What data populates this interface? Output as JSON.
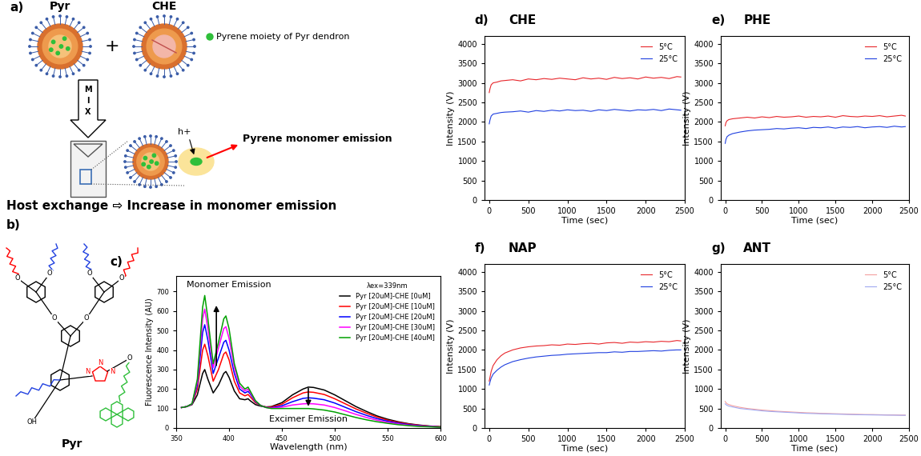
{
  "panel_a": {
    "label": "a)",
    "left_host": "Pyr",
    "right_host": "CHE",
    "plus": "+",
    "mix": "MIX",
    "key": "Pyrene moiety of Pyr dendron",
    "hole": "h+",
    "emission": "Pyrene monomer emission",
    "caption": "Host exchange ⇨ Increase in monomer emission"
  },
  "panel_b": {
    "label": "b)",
    "name": "Pyr",
    "atoms": [
      "O",
      "O",
      "O",
      "O",
      "O",
      "O",
      "OH",
      "N",
      "N",
      "N",
      "O"
    ]
  },
  "chart_data": [
    {
      "type": "line",
      "label": "c)",
      "xlabel": "Wavelength (nm)",
      "ylabel": "Fluorescence Intensity (AU)",
      "annotations": [
        "Monomer Emission",
        "Excimer Emission"
      ],
      "legend_title": "λex=339nm",
      "legend": "upper right",
      "xlim": [
        350,
        600
      ],
      "xticks": [
        350,
        400,
        450,
        500,
        550,
        600
      ],
      "ylim": [
        0,
        780
      ],
      "yticks": [
        0,
        100,
        200,
        300,
        400,
        500,
        600,
        700
      ],
      "x": [
        355,
        360,
        365,
        370,
        375,
        377,
        380,
        385,
        390,
        395,
        397,
        400,
        405,
        410,
        415,
        418,
        420,
        425,
        430,
        435,
        440,
        450,
        460,
        470,
        475,
        480,
        490,
        500,
        510,
        520,
        530,
        540,
        550,
        560,
        570,
        580,
        590,
        600
      ],
      "series": [
        {
          "name": "Pyr [20uM]-CHE [0uM]",
          "color": "#000000",
          "values": [
            105,
            110,
            120,
            170,
            280,
            300,
            250,
            180,
            220,
            280,
            290,
            260,
            190,
            150,
            145,
            150,
            140,
            120,
            112,
            108,
            110,
            130,
            170,
            200,
            210,
            208,
            195,
            170,
            140,
            110,
            85,
            62,
            45,
            32,
            22,
            15,
            10,
            7
          ]
        },
        {
          "name": "Pyr [20uM]-CHE [10uM]",
          "color": "#ff0000",
          "values": [
            105,
            110,
            122,
            200,
            400,
            430,
            370,
            240,
            300,
            380,
            390,
            350,
            240,
            180,
            165,
            172,
            160,
            130,
            115,
            108,
            108,
            122,
            155,
            180,
            185,
            183,
            172,
            150,
            124,
            98,
            76,
            56,
            40,
            29,
            20,
            14,
            9,
            6
          ]
        },
        {
          "name": "Pyr [20uM]-CHE [20uM]",
          "color": "#0000ff",
          "values": [
            105,
            110,
            123,
            220,
            490,
            530,
            450,
            280,
            360,
            440,
            450,
            400,
            280,
            200,
            180,
            188,
            175,
            135,
            115,
            106,
            104,
            114,
            135,
            152,
            155,
            153,
            145,
            128,
            106,
            84,
            65,
            48,
            35,
            25,
            17,
            12,
            8,
            5
          ]
        },
        {
          "name": "Pyr [20uM]-CHE [30uM]",
          "color": "#ff00ff",
          "values": [
            105,
            110,
            124,
            235,
            560,
            610,
            510,
            310,
            410,
            510,
            520,
            460,
            310,
            215,
            190,
            200,
            182,
            138,
            115,
            105,
            102,
            107,
            118,
            124,
            125,
            124,
            118,
            105,
            88,
            70,
            54,
            40,
            29,
            21,
            14,
            10,
            7,
            5
          ]
        },
        {
          "name": "Pyr [20uM]-CHE [40uM]",
          "color": "#00a000",
          "values": [
            105,
            110,
            125,
            250,
            620,
            680,
            560,
            330,
            440,
            560,
            575,
            510,
            330,
            230,
            200,
            210,
            190,
            140,
            115,
            105,
            100,
            100,
            100,
            100,
            100,
            98,
            92,
            82,
            68,
            54,
            42,
            32,
            24,
            17,
            12,
            8,
            6,
            4
          ]
        }
      ]
    },
    {
      "type": "line",
      "label": "d)",
      "title": "CHE",
      "xlabel": "Time (sec)",
      "ylabel": "Intensity (V)",
      "legend": "upper right",
      "xlim": [
        -60,
        2500
      ],
      "xticks": [
        0,
        500,
        1000,
        1500,
        2000,
        2500
      ],
      "ylim": [
        0,
        4200
      ],
      "yticks": [
        0,
        500,
        1000,
        1500,
        2000,
        2500,
        3000,
        3500,
        4000
      ],
      "x": [
        0,
        10,
        25,
        50,
        100,
        150,
        200,
        300,
        400,
        500,
        600,
        700,
        800,
        900,
        1000,
        1100,
        1200,
        1300,
        1400,
        1500,
        1600,
        1700,
        1800,
        1900,
        2000,
        2100,
        2200,
        2300,
        2400,
        2450
      ],
      "series": [
        {
          "name": "5°C",
          "color": "#e8262b",
          "values": [
            2750,
            2850,
            2950,
            3000,
            3020,
            3050,
            3060,
            3080,
            3050,
            3100,
            3080,
            3110,
            3090,
            3120,
            3100,
            3080,
            3130,
            3100,
            3120,
            3090,
            3140,
            3110,
            3130,
            3100,
            3150,
            3120,
            3140,
            3110,
            3160,
            3150
          ]
        },
        {
          "name": "25°C",
          "color": "#2040e0",
          "values": [
            1950,
            2050,
            2150,
            2200,
            2220,
            2240,
            2250,
            2260,
            2280,
            2250,
            2290,
            2270,
            2300,
            2280,
            2310,
            2290,
            2300,
            2270,
            2310,
            2290,
            2320,
            2300,
            2280,
            2310,
            2300,
            2320,
            2290,
            2330,
            2310,
            2300
          ]
        }
      ]
    },
    {
      "type": "line",
      "label": "e)",
      "title": "PHE",
      "xlabel": "Time (sec)",
      "ylabel": "Intensity (V)",
      "legend": "upper right",
      "xlim": [
        -60,
        2500
      ],
      "xticks": [
        0,
        500,
        1000,
        1500,
        2000,
        2500
      ],
      "ylim": [
        0,
        4200
      ],
      "yticks": [
        0,
        500,
        1000,
        1500,
        2000,
        2500,
        3000,
        3500,
        4000
      ],
      "x": [
        0,
        10,
        25,
        50,
        100,
        150,
        200,
        300,
        400,
        500,
        600,
        700,
        800,
        900,
        1000,
        1100,
        1200,
        1300,
        1400,
        1500,
        1600,
        1700,
        1800,
        1900,
        2000,
        2100,
        2200,
        2300,
        2400,
        2450
      ],
      "series": [
        {
          "name": "5°C",
          "color": "#e8262b",
          "values": [
            1900,
            1980,
            2030,
            2060,
            2080,
            2090,
            2100,
            2120,
            2100,
            2130,
            2110,
            2140,
            2120,
            2130,
            2150,
            2120,
            2140,
            2130,
            2150,
            2120,
            2160,
            2140,
            2130,
            2150,
            2140,
            2160,
            2130,
            2150,
            2170,
            2150
          ]
        },
        {
          "name": "25°C",
          "color": "#2040e0",
          "values": [
            1450,
            1550,
            1620,
            1660,
            1700,
            1720,
            1740,
            1770,
            1790,
            1800,
            1810,
            1830,
            1820,
            1840,
            1850,
            1830,
            1860,
            1850,
            1870,
            1840,
            1870,
            1860,
            1880,
            1850,
            1870,
            1880,
            1860,
            1890,
            1870,
            1880
          ]
        }
      ]
    },
    {
      "type": "line",
      "label": "f)",
      "title": "NAP",
      "xlabel": "Time (sec)",
      "ylabel": "Intensity (V)",
      "legend": "upper right",
      "xlim": [
        -60,
        2500
      ],
      "xticks": [
        0,
        500,
        1000,
        1500,
        2000,
        2500
      ],
      "ylim": [
        0,
        4200
      ],
      "yticks": [
        0,
        500,
        1000,
        1500,
        2000,
        2500,
        3000,
        3500,
        4000
      ],
      "x": [
        0,
        10,
        25,
        50,
        100,
        150,
        200,
        300,
        400,
        500,
        600,
        700,
        800,
        900,
        1000,
        1100,
        1200,
        1300,
        1400,
        1500,
        1600,
        1700,
        1800,
        1900,
        2000,
        2100,
        2200,
        2300,
        2400,
        2450
      ],
      "series": [
        {
          "name": "5°C",
          "color": "#e8262b",
          "values": [
            1200,
            1300,
            1450,
            1600,
            1750,
            1850,
            1920,
            2000,
            2050,
            2080,
            2100,
            2110,
            2130,
            2120,
            2150,
            2140,
            2160,
            2170,
            2150,
            2180,
            2190,
            2170,
            2200,
            2190,
            2210,
            2200,
            2220,
            2210,
            2240,
            2230
          ]
        },
        {
          "name": "25°C",
          "color": "#2040e0",
          "values": [
            1100,
            1180,
            1280,
            1380,
            1480,
            1560,
            1620,
            1700,
            1750,
            1790,
            1820,
            1840,
            1860,
            1870,
            1890,
            1900,
            1910,
            1920,
            1930,
            1930,
            1950,
            1940,
            1960,
            1960,
            1970,
            1980,
            1970,
            1990,
            2000,
            2000
          ]
        }
      ]
    },
    {
      "type": "line",
      "label": "g)",
      "title": "ANT",
      "xlabel": "Time (sec)",
      "ylabel": "Intensity (V)",
      "legend": "upper right",
      "xlim": [
        -60,
        2500
      ],
      "xticks": [
        0,
        500,
        1000,
        1500,
        2000,
        2500
      ],
      "ylim": [
        0,
        4200
      ],
      "yticks": [
        0,
        500,
        1000,
        1500,
        2000,
        2500,
        3000,
        3500,
        4000
      ],
      "x": [
        0,
        10,
        25,
        50,
        100,
        150,
        200,
        300,
        400,
        500,
        600,
        700,
        800,
        900,
        1000,
        1100,
        1200,
        1300,
        1400,
        1500,
        1600,
        1700,
        1800,
        1900,
        2000,
        2100,
        2200,
        2300,
        2400,
        2450
      ],
      "series": [
        {
          "name": "5°C",
          "color": "#f4a0a0",
          "values": [
            680,
            650,
            620,
            600,
            570,
            550,
            530,
            500,
            480,
            460,
            445,
            430,
            420,
            410,
            400,
            390,
            385,
            375,
            370,
            365,
            360,
            355,
            350,
            345,
            345,
            340,
            335,
            335,
            330,
            330
          ]
        },
        {
          "name": "25°C",
          "color": "#a0a8f0",
          "values": [
            620,
            600,
            580,
            560,
            540,
            520,
            500,
            480,
            460,
            440,
            425,
            415,
            405,
            395,
            385,
            375,
            370,
            365,
            360,
            355,
            350,
            345,
            340,
            338,
            335,
            332,
            330,
            328,
            325,
            325
          ]
        }
      ]
    }
  ]
}
